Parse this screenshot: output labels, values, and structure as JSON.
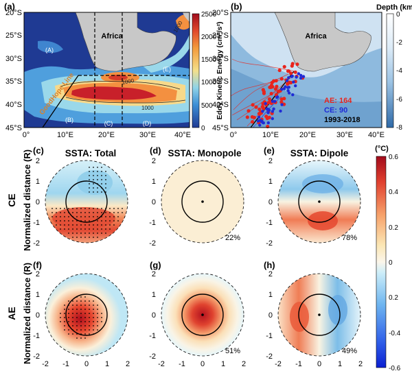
{
  "panels": {
    "a": {
      "label": "(a)",
      "region_labels": [
        "(A)",
        "(B)",
        "(C)",
        "(D)",
        "(E)"
      ],
      "land_label": "Africa",
      "contour_labels": [
        "1000",
        "1000",
        "1000"
      ],
      "current_label": "GoodHope Line",
      "colorbar": {
        "title": "Eddy Kinetic Energy (cm²/s²)",
        "ticks": [
          "2500",
          "2000",
          "1500",
          "1000",
          "500",
          "0"
        ]
      },
      "xticks": [
        "0°",
        "10°E",
        "20°E",
        "30°E",
        "40°E"
      ],
      "yticks": [
        "20°S",
        "25°S",
        "30°S",
        "35°S",
        "40°S",
        "45°S"
      ]
    },
    "b": {
      "label": "(b)",
      "land_label": "Africa",
      "legend": {
        "ae": "AE: 164",
        "ce": "CE: 90",
        "years": "1993-2018"
      },
      "colorbar": {
        "title": "Depth (km)",
        "ticks": [
          "0",
          "-2",
          "-4",
          "-6",
          "-8"
        ]
      },
      "xticks": [
        "0°",
        "10°E",
        "20°E",
        "30°E",
        "40°E"
      ],
      "yticks": [
        "20°S",
        "25°S",
        "30°S",
        "35°S",
        "40°S",
        "45°S"
      ]
    },
    "composites": {
      "row_labels": {
        "ce": "CE",
        "ae": "AE"
      },
      "ylabel": "Normalized distance (R)",
      "ticks": [
        "-2",
        "-1",
        "0",
        "1",
        "2"
      ],
      "cells": [
        {
          "label": "(c)",
          "title": "SSTA: Total",
          "percent": ""
        },
        {
          "label": "(d)",
          "title": "SSTA: Monopole",
          "percent": "22%"
        },
        {
          "label": "(e)",
          "title": "SSTA: Dipole",
          "percent": "78%"
        },
        {
          "label": "(f)",
          "title": "",
          "percent": ""
        },
        {
          "label": "(g)",
          "title": "",
          "percent": "51%"
        },
        {
          "label": "(h)",
          "title": "",
          "percent": "49%"
        }
      ],
      "colorbar": {
        "unit": "(°C)",
        "ticks": [
          "0.6",
          "0.4",
          "0.2",
          "0",
          "0.2",
          "-0.4",
          "-0.6"
        ]
      }
    }
  },
  "colors": {
    "ocean_eke_low": "#1f3a93",
    "eke_high": "#b2182b",
    "land": "#c8c8c8",
    "ae": "#e8241c",
    "ce": "#1f2bd6",
    "goodhope_label": "#d9822b",
    "depth_light": "#eaf3fb",
    "depth_dark": "#2e6aa6"
  },
  "chart_data": [
    {
      "type": "heatmap",
      "panel": "a",
      "description_value": "Eddy kinetic energy map of the region around southern Africa",
      "xlim": [
        0,
        40
      ],
      "ylim": [
        -45,
        -20
      ],
      "colorbar_range": [
        0,
        2500
      ],
      "contour_levels": [
        1000
      ]
    },
    {
      "type": "scatter",
      "panel": "b",
      "xlim": [
        0,
        40
      ],
      "ylim": [
        -45,
        -20
      ],
      "series": [
        {
          "name": "AE",
          "count": 164
        },
        {
          "name": "CE",
          "count": 90
        }
      ],
      "period": "1993-2018",
      "colorbar_range": [
        -8,
        0
      ]
    },
    {
      "type": "heatmap",
      "panels": [
        "c",
        "d",
        "e",
        "f",
        "g",
        "h"
      ],
      "xlim": [
        -2,
        2
      ],
      "ylim": [
        -2,
        2
      ],
      "colorbar_range": [
        -0.6,
        0.6
      ],
      "monopole_share": {
        "CE": 22,
        "AE": 51
      },
      "dipole_share": {
        "CE": 78,
        "AE": 49
      }
    }
  ]
}
